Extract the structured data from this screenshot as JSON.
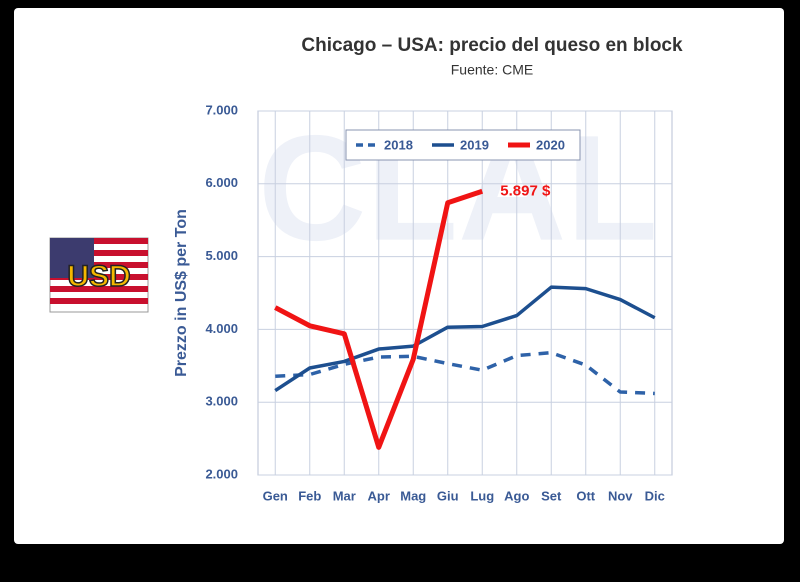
{
  "chart_data": {
    "type": "line",
    "title": "Chicago – USA: precio del queso en block",
    "subtitle": "Fuente: CME",
    "ylabel": "Prezzo in US$ per Ton",
    "watermark": "CLAL",
    "badge": "USD",
    "annotation": "5.897 $",
    "categories": [
      "Gen",
      "Feb",
      "Mar",
      "Apr",
      "Mag",
      "Giu",
      "Lug",
      "Ago",
      "Set",
      "Ott",
      "Nov",
      "Dic"
    ],
    "series": [
      {
        "name": "2018",
        "color": "#2e62a8",
        "dashed": true,
        "values": [
          3356,
          3380,
          3520,
          3620,
          3630,
          3530,
          3440,
          3640,
          3680,
          3510,
          3140,
          3120
        ]
      },
      {
        "name": "2019",
        "color": "#1d4f8f",
        "dashed": false,
        "values": [
          3160,
          3470,
          3560,
          3730,
          3770,
          4030,
          4040,
          4190,
          4580,
          4560,
          4410,
          4160
        ]
      },
      {
        "name": "2020",
        "color": "#f01414",
        "dashed": false,
        "values": [
          4300,
          4050,
          3940,
          2380,
          3590,
          5740,
          5897,
          null,
          null,
          null,
          null,
          null
        ]
      }
    ],
    "ylim": [
      2000,
      7000
    ],
    "yticks": [
      {
        "value": 2000,
        "label": "2.000"
      },
      {
        "value": 3000,
        "label": "3.000"
      },
      {
        "value": 4000,
        "label": "4.000"
      },
      {
        "value": 5000,
        "label": "5.000"
      },
      {
        "value": 6000,
        "label": "6.000"
      },
      {
        "value": 7000,
        "label": "7.000"
      }
    ],
    "grid": true
  }
}
